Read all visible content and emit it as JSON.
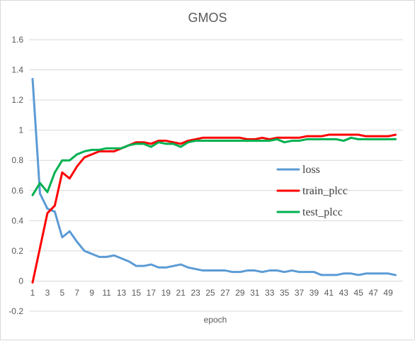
{
  "chart_data": {
    "type": "line",
    "title": "GMOS",
    "xlabel": "epoch",
    "ylabel": "",
    "ylim": [
      -0.2,
      1.6
    ],
    "yticks": [
      -0.2,
      0,
      0.2,
      0.4,
      0.6,
      0.8,
      1,
      1.2,
      1.4,
      1.6
    ],
    "x": [
      1,
      2,
      3,
      4,
      5,
      6,
      7,
      8,
      9,
      10,
      11,
      12,
      13,
      14,
      15,
      16,
      17,
      18,
      19,
      20,
      21,
      22,
      23,
      24,
      25,
      26,
      27,
      28,
      29,
      30,
      31,
      32,
      33,
      34,
      35,
      36,
      37,
      38,
      39,
      40,
      41,
      42,
      43,
      44,
      45,
      46,
      47,
      48,
      49,
      50
    ],
    "xtick_labels": [
      "1",
      "3",
      "5",
      "7",
      "9",
      "11",
      "13",
      "15",
      "17",
      "19",
      "21",
      "23",
      "25",
      "27",
      "29",
      "31",
      "33",
      "35",
      "37",
      "39",
      "41",
      "43",
      "45",
      "47",
      "49"
    ],
    "grid": "horizontal",
    "legend_position": "right",
    "series": [
      {
        "name": "loss",
        "color": "#5b9bd5",
        "values": [
          1.34,
          0.58,
          0.48,
          0.46,
          0.29,
          0.33,
          0.26,
          0.2,
          0.18,
          0.16,
          0.16,
          0.17,
          0.15,
          0.13,
          0.1,
          0.1,
          0.11,
          0.09,
          0.09,
          0.1,
          0.11,
          0.09,
          0.08,
          0.07,
          0.07,
          0.07,
          0.07,
          0.06,
          0.06,
          0.07,
          0.07,
          0.06,
          0.07,
          0.07,
          0.06,
          0.07,
          0.06,
          0.06,
          0.06,
          0.04,
          0.04,
          0.04,
          0.05,
          0.05,
          0.04,
          0.05,
          0.05,
          0.05,
          0.05,
          0.04
        ]
      },
      {
        "name": "train_plcc",
        "color": "#ff0000",
        "values": [
          -0.01,
          0.22,
          0.45,
          0.5,
          0.72,
          0.68,
          0.76,
          0.82,
          0.84,
          0.86,
          0.86,
          0.86,
          0.88,
          0.9,
          0.92,
          0.92,
          0.91,
          0.93,
          0.93,
          0.92,
          0.91,
          0.93,
          0.94,
          0.95,
          0.95,
          0.95,
          0.95,
          0.95,
          0.95,
          0.94,
          0.94,
          0.95,
          0.94,
          0.95,
          0.95,
          0.95,
          0.95,
          0.96,
          0.96,
          0.96,
          0.97,
          0.97,
          0.97,
          0.97,
          0.97,
          0.96,
          0.96,
          0.96,
          0.96,
          0.97
        ]
      },
      {
        "name": "test_plcc",
        "color": "#00b050",
        "values": [
          0.57,
          0.65,
          0.59,
          0.72,
          0.8,
          0.8,
          0.84,
          0.86,
          0.87,
          0.87,
          0.88,
          0.88,
          0.88,
          0.9,
          0.91,
          0.91,
          0.89,
          0.92,
          0.91,
          0.91,
          0.89,
          0.92,
          0.93,
          0.93,
          0.93,
          0.93,
          0.93,
          0.93,
          0.93,
          0.93,
          0.93,
          0.93,
          0.93,
          0.94,
          0.92,
          0.93,
          0.93,
          0.94,
          0.94,
          0.94,
          0.94,
          0.94,
          0.93,
          0.95,
          0.94,
          0.94,
          0.94,
          0.94,
          0.94,
          0.94
        ]
      }
    ]
  }
}
